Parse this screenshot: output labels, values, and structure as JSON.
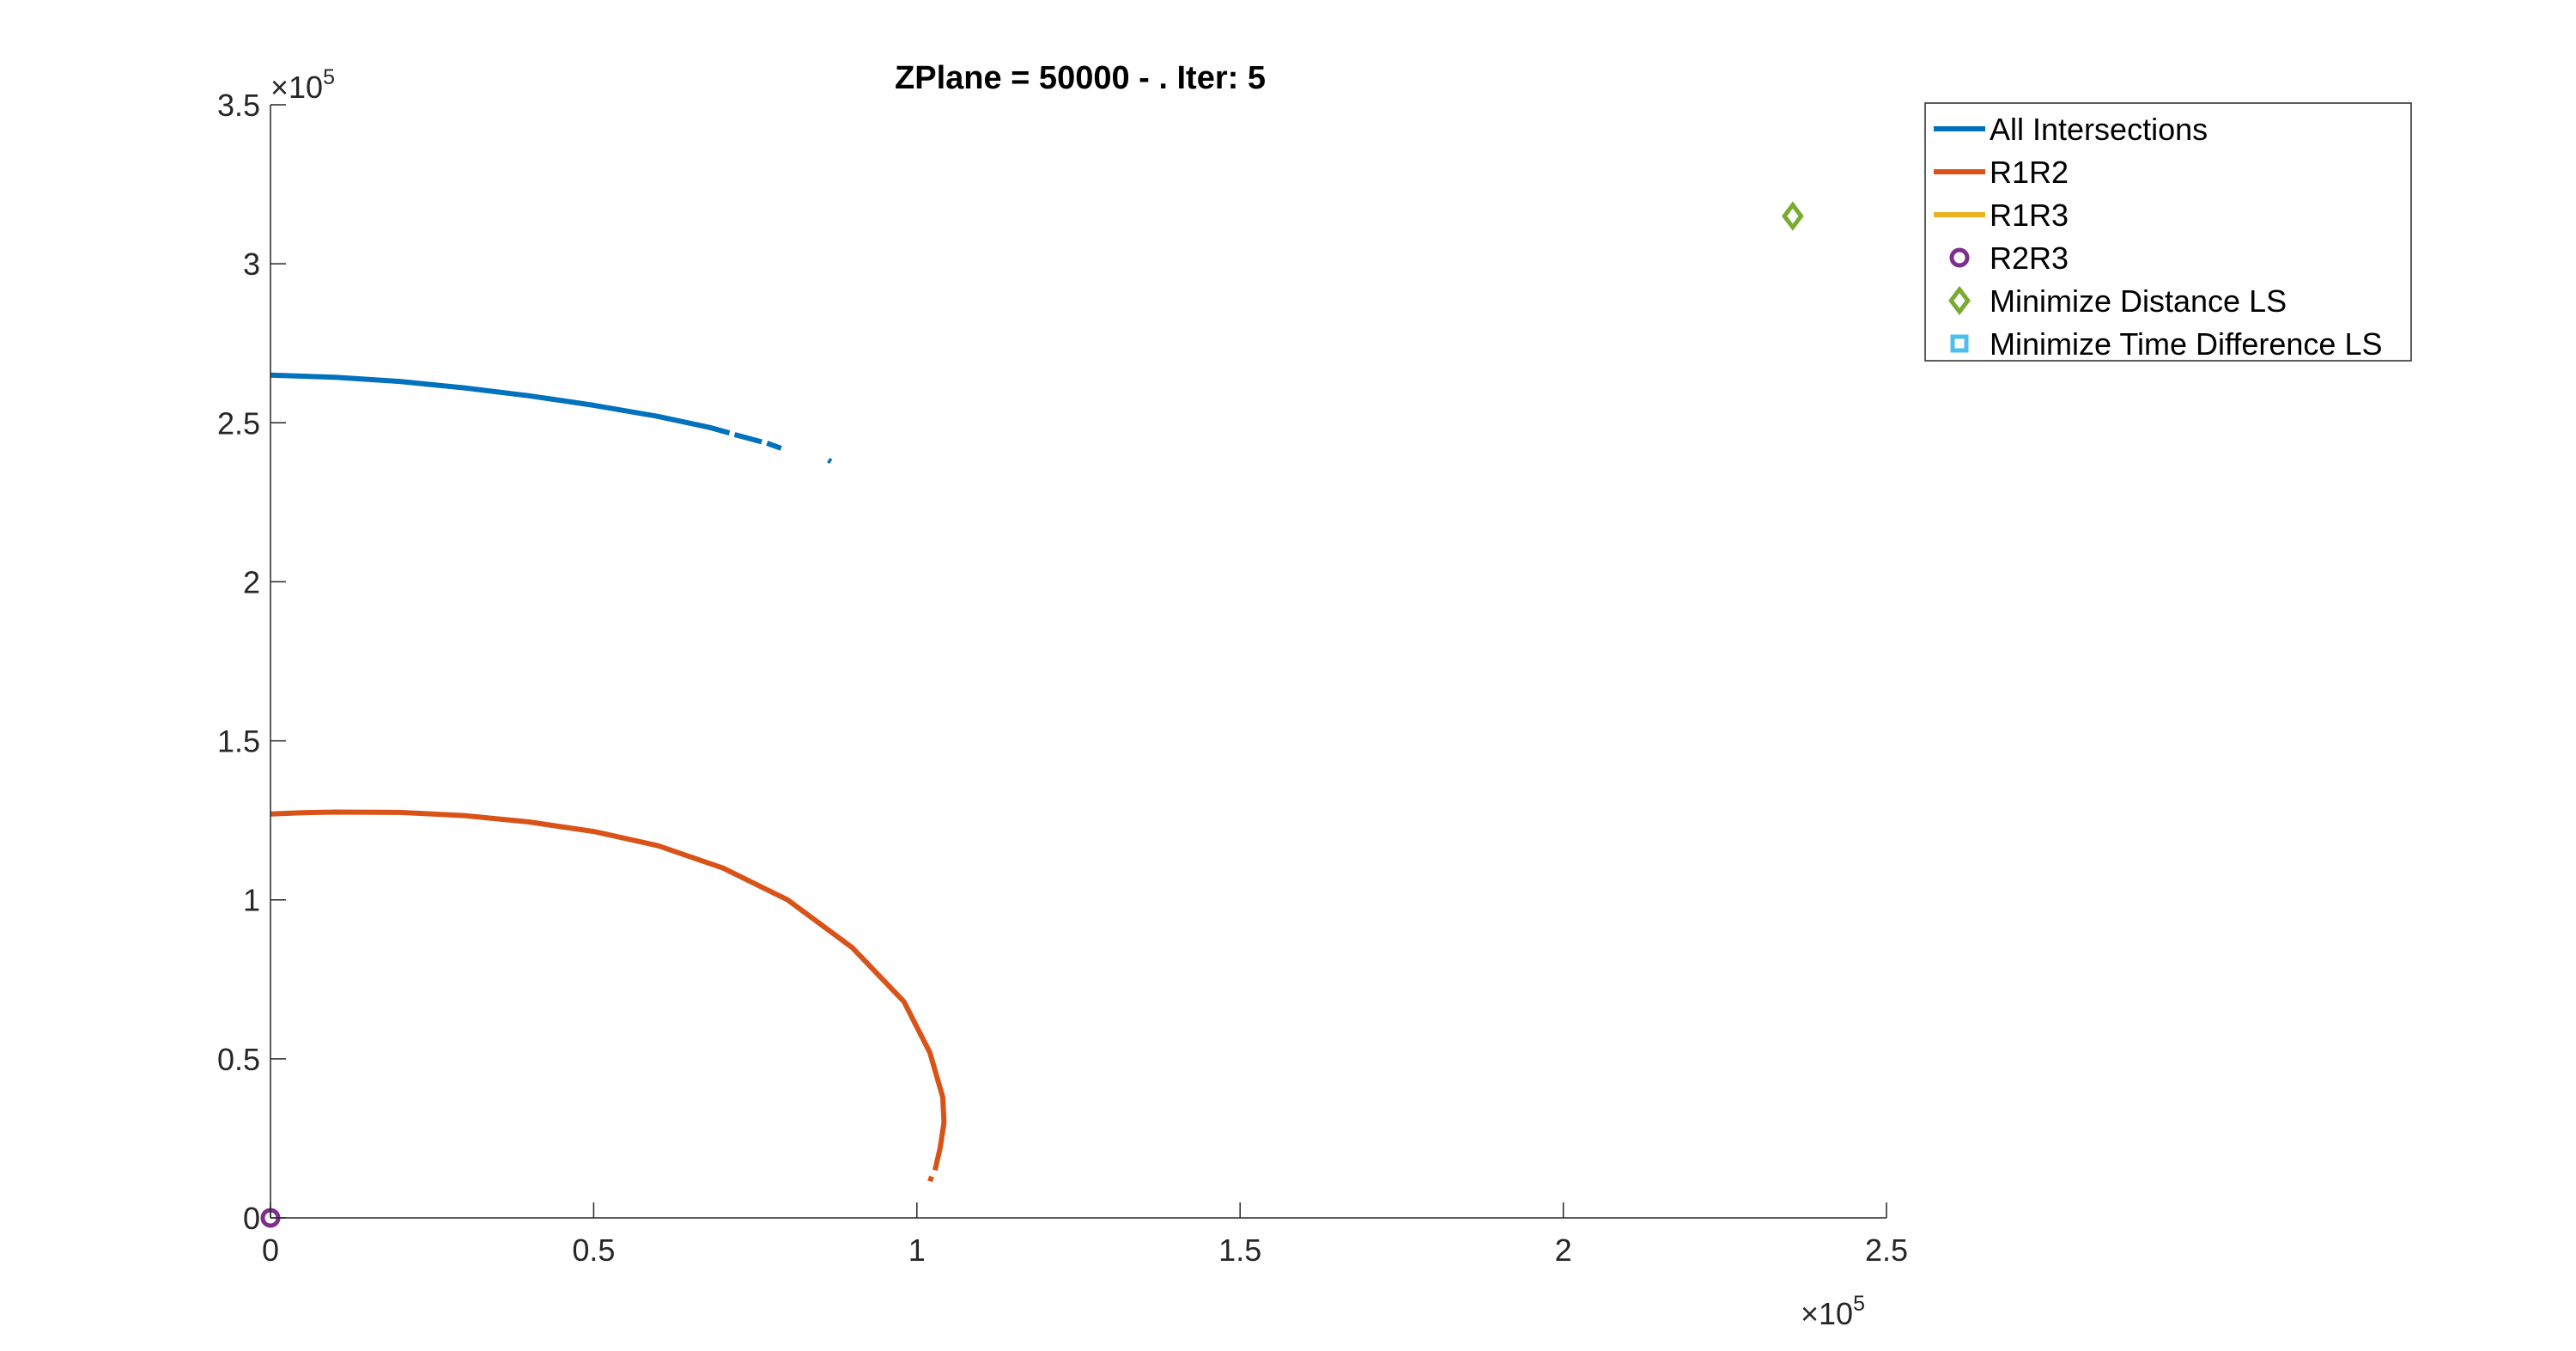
{
  "chart_data": {
    "type": "line",
    "title": "ZPlane = 50000 - . Iter: 5",
    "xlabel": "",
    "ylabel": "",
    "xlim": [
      0,
      250000
    ],
    "ylim": [
      0,
      350000
    ],
    "x_ticks": [
      0,
      50000,
      100000,
      150000,
      200000,
      250000
    ],
    "x_tick_labels": [
      "0",
      "0.5",
      "1",
      "1.5",
      "2",
      "2.5"
    ],
    "y_ticks": [
      0,
      50000,
      100000,
      150000,
      200000,
      250000,
      300000,
      350000
    ],
    "y_tick_labels": [
      "0",
      "0.5",
      "1",
      "1.5",
      "2",
      "2.5",
      "3",
      "3.5"
    ],
    "x_exponent": {
      "base": "×10",
      "power": "5"
    },
    "y_exponent": {
      "base": "×10",
      "power": "5"
    },
    "grid": false,
    "legend_position": "top-right",
    "series": [
      {
        "name": "All Intersections",
        "kind": "line",
        "color": "#0072BD",
        "segments": [
          [
            [
              0,
              265000
            ],
            [
              10000,
              264300
            ],
            [
              20000,
              263000
            ],
            [
              30000,
              261000
            ],
            [
              40000,
              258500
            ],
            [
              50000,
              255500
            ],
            [
              60000,
              252000
            ],
            [
              68000,
              248500
            ],
            [
              71000,
              246800
            ]
          ],
          [
            [
              71800,
              246300
            ],
            [
              76000,
              244000
            ]
          ],
          [
            [
              76800,
              243600
            ],
            [
              79000,
              242000
            ]
          ],
          [
            [
              86300,
              238300
            ],
            [
              86700,
              237800
            ]
          ]
        ]
      },
      {
        "name": "R1R2",
        "kind": "line",
        "color": "#D95319",
        "segments": [
          [
            [
              0,
              127000
            ],
            [
              5000,
              127400
            ],
            [
              10000,
              127600
            ],
            [
              20000,
              127500
            ],
            [
              30000,
              126500
            ],
            [
              40000,
              124500
            ],
            [
              50000,
              121500
            ],
            [
              60000,
              117000
            ],
            [
              70000,
              110000
            ],
            [
              80000,
              100000
            ],
            [
              90000,
              85000
            ],
            [
              98000,
              68000
            ],
            [
              102000,
              52000
            ],
            [
              104000,
              38000
            ],
            [
              104200,
              30000
            ],
            [
              103600,
              22000
            ],
            [
              102800,
              15000
            ]
          ],
          [
            [
              102300,
              13000
            ],
            [
              102000,
              11500
            ]
          ]
        ]
      },
      {
        "name": "R1R3",
        "kind": "line",
        "color": "#EDB120",
        "segments": []
      },
      {
        "name": "R2R3",
        "kind": "marker",
        "marker": "circle",
        "color": "#7E2F8E",
        "points": [
          [
            0,
            0
          ]
        ]
      },
      {
        "name": "Minimize Distance LS",
        "kind": "marker",
        "marker": "diamond",
        "color": "#77AC30",
        "points": [
          [
            235500,
            315000
          ]
        ]
      },
      {
        "name": "Minimize Time Difference LS",
        "kind": "marker",
        "marker": "square",
        "color": "#4DBEEE",
        "points": []
      }
    ]
  }
}
